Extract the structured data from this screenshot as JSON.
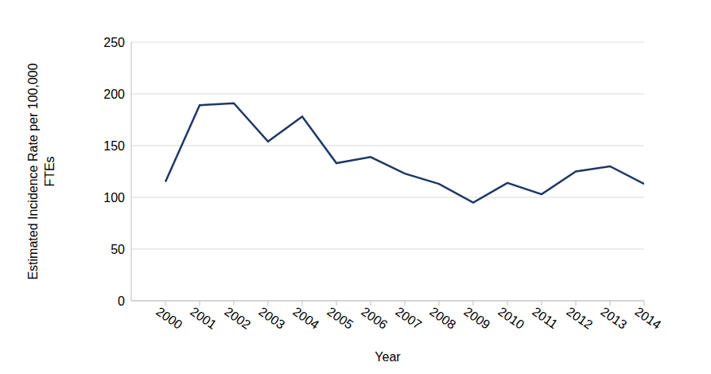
{
  "chart_data": {
    "type": "line",
    "x_label": "Year",
    "y_label": "Estimated Incidence Rate per 100,000 FTEs",
    "x": [
      2000,
      2001,
      2002,
      2003,
      2004,
      2005,
      2006,
      2007,
      2008,
      2009,
      2010,
      2011,
      2012,
      2013,
      2014
    ],
    "values": [
      115,
      189,
      191,
      154,
      178,
      133,
      139,
      123,
      113,
      95,
      114,
      103,
      125,
      130,
      113
    ],
    "color": "#1f3864",
    "xlim": [
      1999,
      2014
    ],
    "xticks": [
      2000,
      2001,
      2002,
      2003,
      2004,
      2005,
      2006,
      2007,
      2008,
      2009,
      2010,
      2011,
      2012,
      2013,
      2014
    ],
    "ylim": [
      0,
      250
    ],
    "yticks": [
      0,
      50,
      100,
      150,
      200,
      250
    ],
    "grid": true
  }
}
